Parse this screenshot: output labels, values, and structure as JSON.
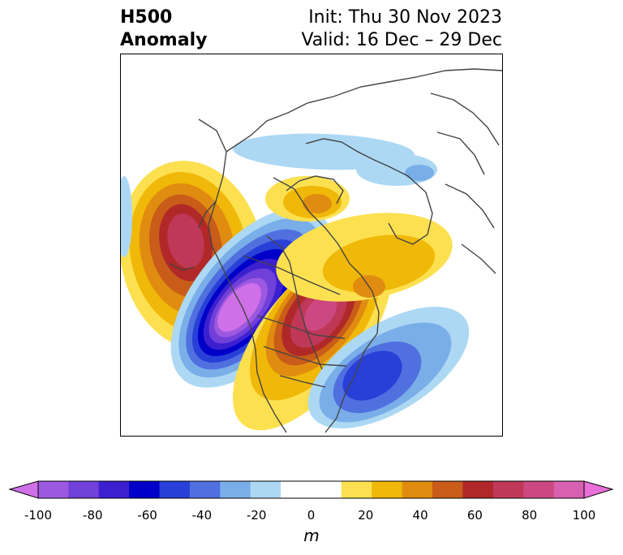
{
  "header": {
    "title_line1": "H500",
    "title_line2": "Anomaly",
    "init_label": "Init: Thu 30 Nov 2023",
    "valid_label": "Valid: 16 Dec – 29 Dec"
  },
  "map": {
    "variable": "500 hPa geopotential height anomaly",
    "anomaly_centers": [
      {
        "name": "north-pacific-ridge",
        "sign": "positive",
        "peak_m": 65
      },
      {
        "name": "west-coast-trough",
        "sign": "negative",
        "peak_m": -95
      },
      {
        "name": "central-canada-ridge",
        "sign": "positive",
        "peak_m": 70
      },
      {
        "name": "western-atlantic-trough",
        "sign": "negative",
        "peak_m": -60
      },
      {
        "name": "arctic-trough",
        "sign": "negative",
        "peak_m": -25
      },
      {
        "name": "greenland-ridge",
        "sign": "positive",
        "peak_m": 35
      }
    ]
  },
  "colorbar": {
    "unit": "m",
    "ticks": [
      "-100",
      "-80",
      "-60",
      "-40",
      "-20",
      "0",
      "20",
      "40",
      "60",
      "80",
      "100"
    ],
    "colors": [
      "#d070e8",
      "#9c58e0",
      "#7040d8",
      "#3c20d0",
      "#0000c8",
      "#2840d8",
      "#5070e0",
      "#7aaee8",
      "#acd8f4",
      "#ffffff",
      "#ffffff",
      "#fce050",
      "#f0b808",
      "#e08c10",
      "#c85c18",
      "#b02828",
      "#c03858",
      "#cc4880",
      "#d860b0",
      "#e870d8"
    ],
    "extend": "both"
  }
}
